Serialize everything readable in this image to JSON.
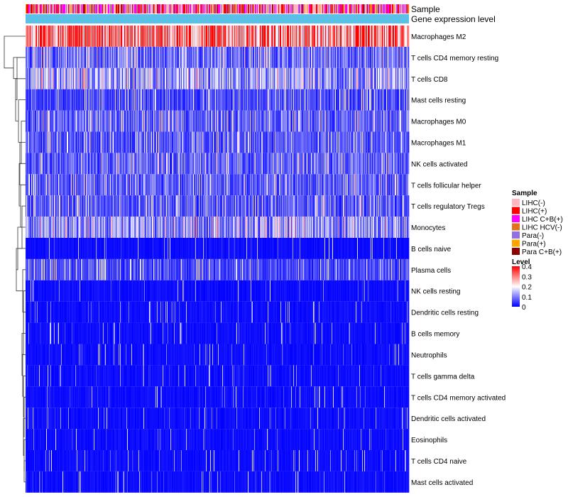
{
  "chart_data": {
    "type": "heatmap",
    "title": "",
    "annotation_tracks": [
      "Sample",
      "Gene expression level"
    ],
    "rows": [
      "Macrophages M2",
      "T cells CD4 memory resting",
      "T cells CD8",
      "Mast cells resting",
      "Macrophages M0",
      "Macrophages M1",
      "NK cells activated",
      "T cells follicular helper",
      "T cells regulatory  Tregs",
      "Monocytes",
      "B cells naive",
      "Plasma cells",
      "NK cells resting",
      "Dendritic cells resting",
      "B cells memory",
      "Neutrophils",
      "T cells gamma delta",
      "T cells CD4 memory activated",
      "Dendritic cells activated",
      "Eosinophils",
      "T cells CD4 naive",
      "Mast cells activated"
    ],
    "row_mean_level": [
      0.3,
      0.09,
      0.13,
      0.06,
      0.08,
      0.07,
      0.08,
      0.08,
      0.07,
      0.12,
      0.04,
      0.06,
      0.03,
      0.03,
      0.03,
      0.02,
      0.02,
      0.02,
      0.02,
      0.02,
      0.02,
      0.02
    ],
    "n_samples": 540,
    "sample_groups": {
      "title": "Sample",
      "items": [
        {
          "label": "LIHC(-)",
          "color": "#ffb6c1"
        },
        {
          "label": "LIHC(+)",
          "color": "#ff0000"
        },
        {
          "label": "LIHC C+B(+)",
          "color": "#ff00ff"
        },
        {
          "label": "LIHC HCV(-)",
          "color": "#e2711d"
        },
        {
          "label": "Para(-)",
          "color": "#9370db"
        },
        {
          "label": "Para(+)",
          "color": "#ffa500"
        },
        {
          "label": "Para C+B(+)",
          "color": "#8b0000"
        }
      ]
    },
    "gene_expression_color": "#5bc0e8",
    "level_scale": {
      "title": "Level",
      "ticks": [
        "0.4",
        "0.3",
        "0.2",
        "0.1",
        "0"
      ],
      "min": 0,
      "max": 0.4,
      "colors": [
        "#0000ff",
        "#ffffff",
        "#ff0000"
      ]
    }
  }
}
